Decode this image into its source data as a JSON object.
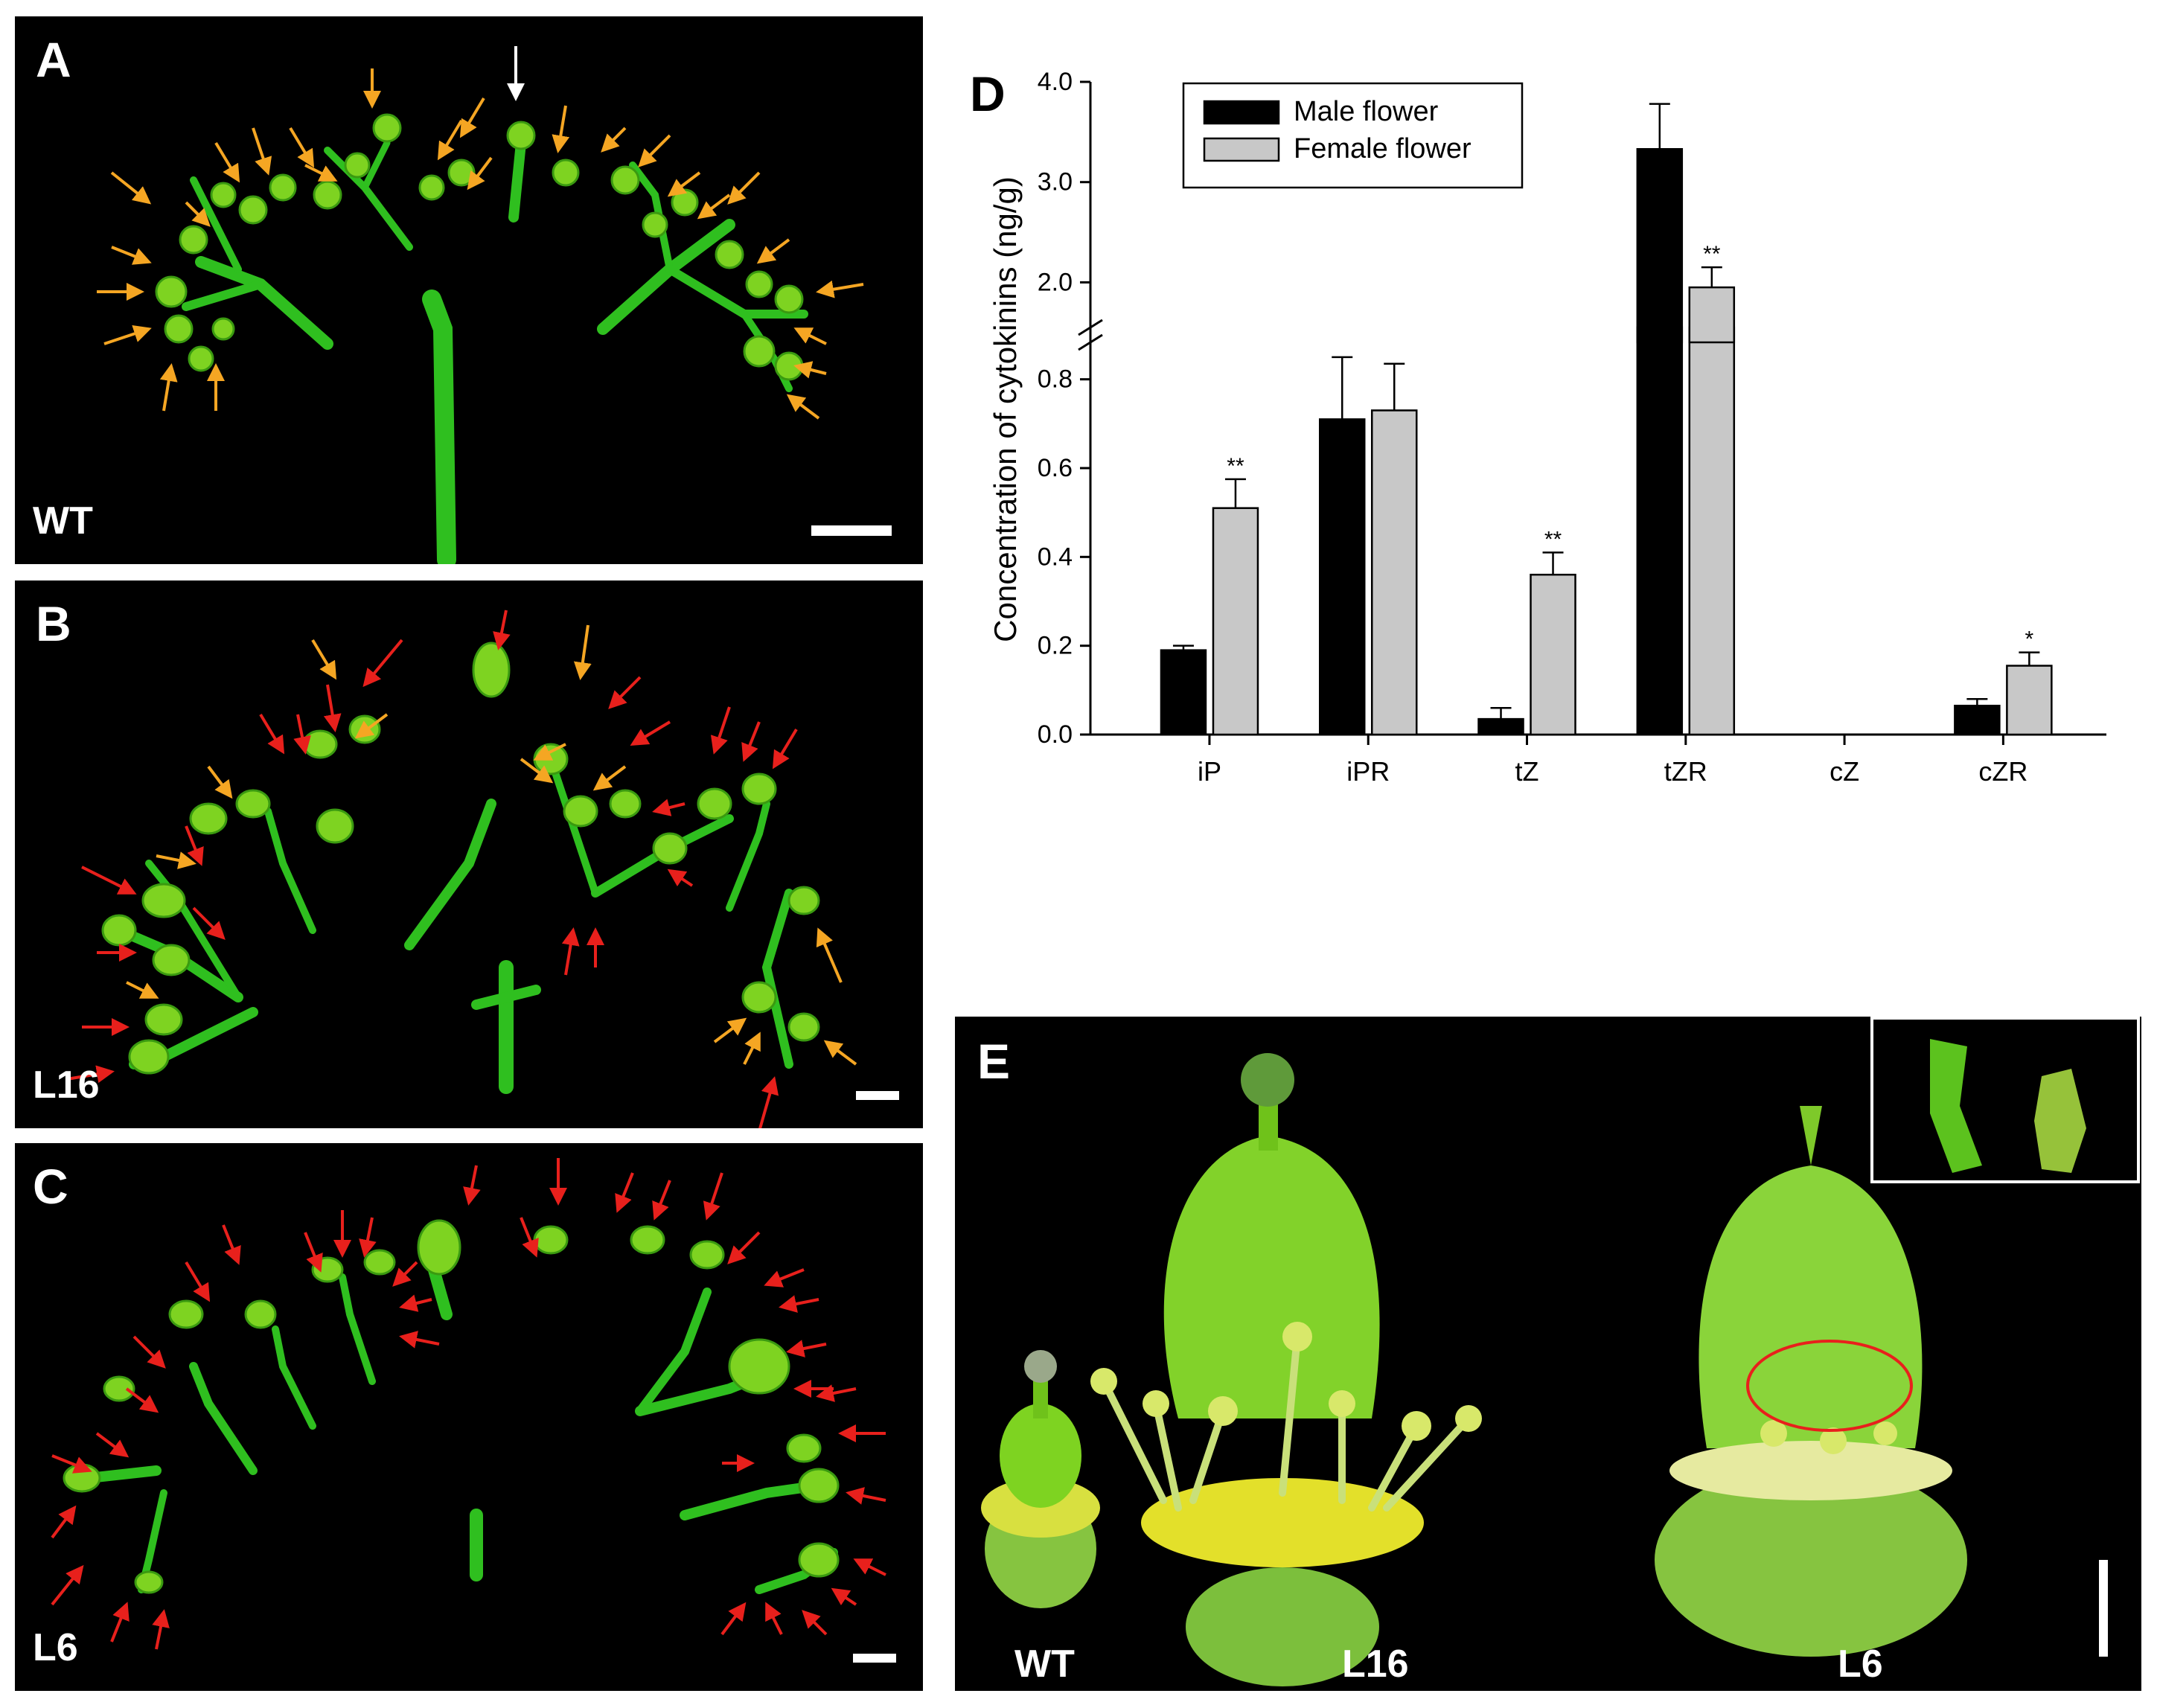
{
  "figure": {
    "panels": [
      {
        "id": "A",
        "letter": "A",
        "genotype": "WT"
      },
      {
        "id": "B",
        "letter": "B",
        "genotype": "L16"
      },
      {
        "id": "C",
        "letter": "C",
        "genotype": "L6"
      },
      {
        "id": "D",
        "letter": "D"
      },
      {
        "id": "E",
        "letter": "E",
        "labels": [
          "WT",
          "L16",
          "L6"
        ]
      }
    ],
    "colors": {
      "background": "#000000",
      "plant_green": "#2fbf1f",
      "arrow_orange": "#f5a623",
      "arrow_red": "#e8201c",
      "arrow_white": "#ffffff",
      "circle_red": "#e8201c",
      "male_bar": "#000000",
      "female_bar": "#c8c8c8"
    }
  },
  "chart_data": {
    "type": "bar",
    "ylabel": "Concentration of cytokinins (ng/g)",
    "categories": [
      "iP",
      "iPR",
      "tZ",
      "tZR",
      "cZ",
      "cZR"
    ],
    "series": [
      {
        "name": "Male flower",
        "color": "#000000",
        "values": [
          0.19,
          0.71,
          0.035,
          3.33,
          0,
          0.065
        ],
        "errors": [
          0.01,
          0.14,
          0.025,
          0.45,
          0,
          0.015
        ],
        "significance": [
          "",
          "",
          "",
          "",
          "",
          ""
        ]
      },
      {
        "name": "Female flower",
        "color": "#c8c8c8",
        "values": [
          0.51,
          0.73,
          0.36,
          1.95,
          0,
          0.155
        ],
        "errors": [
          0.065,
          0.105,
          0.05,
          0.2,
          0,
          0.03
        ],
        "significance": [
          "**",
          "",
          "**",
          "**",
          "",
          "*"
        ]
      }
    ],
    "y_axis_lower": {
      "range": [
        0,
        0.9
      ],
      "ticks": [
        "0.0",
        "0.2",
        "0.4",
        "0.6",
        "0.8"
      ]
    },
    "y_axis_upper": {
      "range": [
        1.55,
        4.0
      ],
      "ticks": [
        "2.0",
        "3.0",
        "4.0"
      ]
    },
    "axis_break": true,
    "legend_position": "top-left"
  }
}
